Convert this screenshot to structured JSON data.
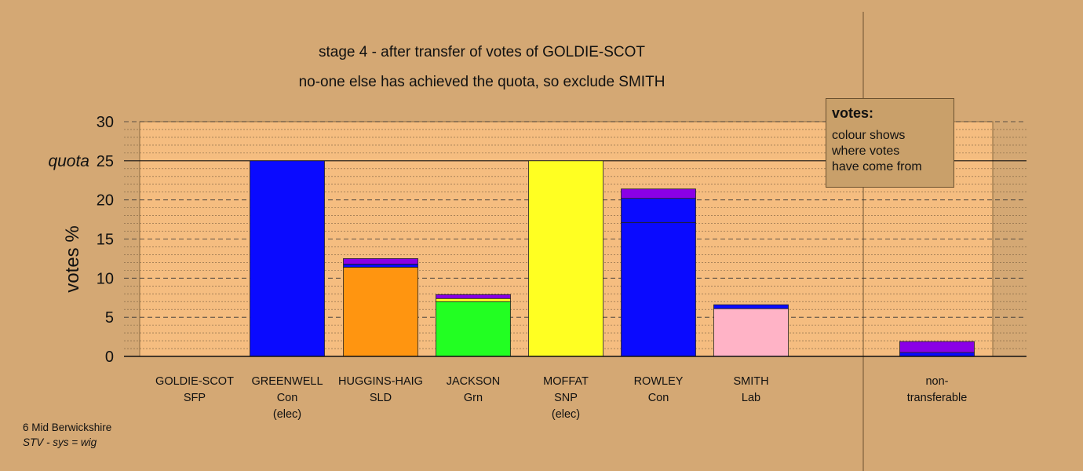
{
  "chart_data": {
    "type": "bar",
    "stacked": true,
    "title": "stage 4 - after transfer of votes of GOLDIE-SCOT",
    "subtitle": "no-one else has achieved the quota, so exclude SMITH",
    "ylabel": "votes %",
    "ylim": [
      0,
      30
    ],
    "yticks": [
      0,
      5,
      10,
      15,
      20,
      25,
      30
    ],
    "quota": 25,
    "quota_label": "quota",
    "grid": true,
    "categories": [
      {
        "name": "GOLDIE-SCOT",
        "party": "SFP",
        "note": ""
      },
      {
        "name": "GREENWELL",
        "party": "Con",
        "note": "(elec)"
      },
      {
        "name": "HUGGINS-HAIG",
        "party": "SLD",
        "note": ""
      },
      {
        "name": "JACKSON",
        "party": "Grn",
        "note": ""
      },
      {
        "name": "MOFFAT",
        "party": "SNP",
        "note": "(elec)"
      },
      {
        "name": "ROWLEY",
        "party": "Con",
        "note": ""
      },
      {
        "name": "SMITH",
        "party": "Lab",
        "note": ""
      },
      {
        "name": "non-",
        "party": "transferable",
        "note": ""
      }
    ],
    "stacks": [
      [],
      [
        {
          "value": 25.0,
          "color": "#0a0aff"
        }
      ],
      [
        {
          "value": 11.4,
          "color": "#ff9510"
        },
        {
          "value": 0.4,
          "color": "#0a0aff"
        },
        {
          "value": 0.7,
          "color": "#8a00e6"
        }
      ],
      [
        {
          "value": 7.0,
          "color": "#22ff22"
        },
        {
          "value": 0.4,
          "color": "#ffff22"
        },
        {
          "value": 0.5,
          "color": "#8a00e6"
        }
      ],
      [
        {
          "value": 25.0,
          "color": "#ffff22"
        }
      ],
      [
        {
          "value": 17.1,
          "color": "#0a0aff"
        },
        {
          "value": 3.1,
          "color": "#0a0aff"
        },
        {
          "value": 1.2,
          "color": "#8a00e6"
        }
      ],
      [
        {
          "value": 6.1,
          "color": "#ffb3c6"
        },
        {
          "value": 0.5,
          "color": "#0a0aff"
        }
      ],
      [
        {
          "value": 0.5,
          "color": "#0a0aff"
        },
        {
          "value": 1.4,
          "color": "#8a00e6"
        }
      ]
    ]
  },
  "legend": {
    "title": "votes:",
    "text": "colour shows\nwhere votes\nhave come from"
  },
  "footnote": {
    "line1": "6 Mid Berwickshire",
    "line2": "STV - sys = wig"
  }
}
